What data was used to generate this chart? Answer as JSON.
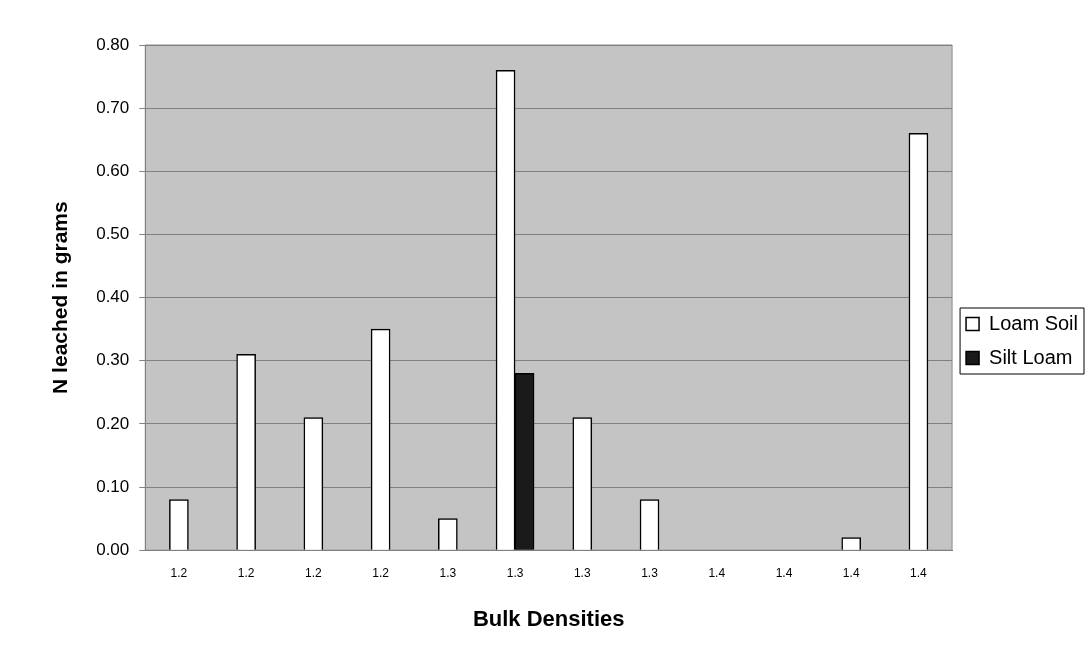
{
  "chart_data": {
    "type": "bar",
    "xlabel": "Bulk Densities",
    "ylabel": "N leached in grams",
    "categories": [
      "1.2",
      "1.2",
      "1.2",
      "1.2",
      "1.3",
      "1.3",
      "1.3",
      "1.3",
      "1.4",
      "1.4",
      "1.4",
      "1.4"
    ],
    "series": [
      {
        "name": "Loam Soil",
        "color": "#ffffff",
        "values": [
          0.08,
          0.31,
          0.21,
          0.35,
          0.05,
          0.76,
          0.21,
          0.08,
          null,
          null,
          0.02,
          0.66
        ]
      },
      {
        "name": "Silt Loam",
        "color": "#1a1a1a",
        "values": [
          null,
          null,
          null,
          null,
          null,
          0.28,
          null,
          null,
          null,
          null,
          null,
          null
        ]
      }
    ],
    "ylim": [
      0,
      0.8
    ],
    "yticks": [
      {
        "value": 0,
        "label": "0.00"
      },
      {
        "value": 0.1,
        "label": "0.10"
      },
      {
        "value": 0.2,
        "label": "0.20"
      },
      {
        "value": 0.3,
        "label": "0.30"
      },
      {
        "value": 0.4,
        "label": "0.40"
      },
      {
        "value": 0.5,
        "label": "0.50"
      },
      {
        "value": 0.6,
        "label": "0.60"
      },
      {
        "value": 0.7,
        "label": "0.70"
      },
      {
        "value": 0.8,
        "label": "0.80"
      }
    ],
    "grid": "y",
    "legend": "right"
  }
}
